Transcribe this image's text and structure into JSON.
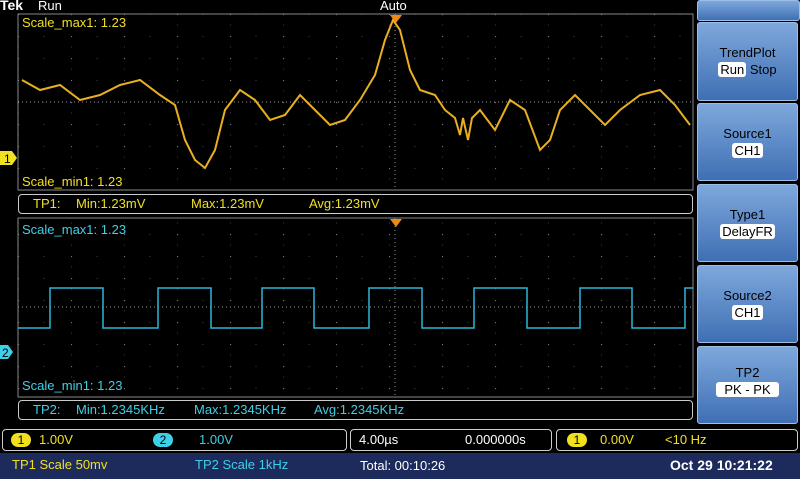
{
  "top_bar": {
    "logo": "Tek",
    "state": "Run",
    "trigger_mode": "Auto"
  },
  "panel1": {
    "scale_max": "Scale_max1: 1.23",
    "scale_min": "Scale_min1: 1.23",
    "marker": "1"
  },
  "stats1": {
    "label": "TP1:",
    "min": "Min:1.23mV",
    "max": "Max:1.23mV",
    "avg": "Avg:1.23mV"
  },
  "panel2": {
    "scale_max": "Scale_max1: 1.23",
    "scale_min": "Scale_min1: 1.23",
    "marker": "2"
  },
  "stats2": {
    "label": "TP2:",
    "min": "Min:1.2345KHz",
    "max": "Max:1.2345KHz",
    "avg": "Avg:1.2345KHz"
  },
  "status1": {
    "ch1_badge": "1",
    "ch1_scale": "1.00V",
    "ch2_badge": "2",
    "ch2_scale": "1.00V",
    "timebase": "4.00µs",
    "position": "0.000000s",
    "trig_badge": "1",
    "trig_level": "0.00V",
    "trig_freq": "<10 Hz"
  },
  "status2": {
    "tp1_scale": "TP1 Scale 50mv",
    "tp2_scale": "TP2 Scale 1kHz",
    "total": "Total: 00:10:26",
    "datetime": "Oct 29 10:21:22"
  },
  "menu": [
    {
      "title": "TrendPlot",
      "option1": "Run",
      "option2": "Stop"
    },
    {
      "title": "Source1",
      "value": "CH1"
    },
    {
      "title": "Type1",
      "value": "DelayFR"
    },
    {
      "title": "Source2",
      "value": "CH1"
    },
    {
      "title": "TP2",
      "value": "PK - PK"
    }
  ]
}
